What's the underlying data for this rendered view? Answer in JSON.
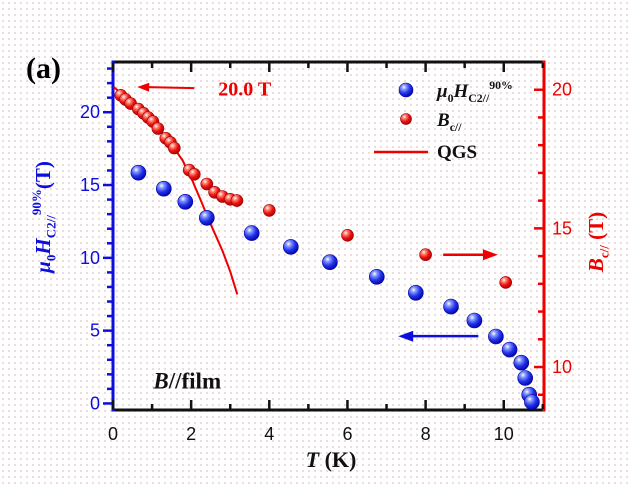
{
  "figure": {
    "panel_label": "(a)",
    "condition_label_plain": "B//film",
    "colors": {
      "blue": "#0d0de0",
      "red": "#ee0000",
      "black": "#111111"
    }
  },
  "chart_data": {
    "type": "scatter",
    "title": "",
    "xlabel": "T (K)",
    "x_axis": {
      "label_parts": [
        {
          "t": "T",
          "s": "it"
        },
        {
          "t": " (K)",
          "s": "n"
        }
      ],
      "range": [
        0,
        11.03
      ],
      "major_ticks": [
        0,
        2,
        4,
        6,
        8,
        10
      ],
      "minor_step": 1,
      "color": "#111111"
    },
    "left_axis": {
      "label_plain": "μ0HC2//90% (T)",
      "label_parts": [
        {
          "t": "μ",
          "s": "it"
        },
        {
          "t": "0",
          "s": "sub"
        },
        {
          "t": "H",
          "s": "it"
        },
        {
          "t": "C2//",
          "s": "sub"
        },
        {
          "t": "90%",
          "s": "sup"
        },
        {
          "t": "(T)",
          "s": "n"
        }
      ],
      "range": [
        -0.45,
        23.45
      ],
      "major_ticks": [
        0,
        5,
        10,
        15,
        20
      ],
      "minor_step": 1,
      "color": "#0d0de0"
    },
    "right_axis": {
      "label_plain": "Bc// (T)",
      "label_parts": [
        {
          "t": "B",
          "s": "it"
        },
        {
          "t": "c//",
          "s": "sub"
        },
        {
          "t": " (T)",
          "s": "n"
        }
      ],
      "range": [
        8.45,
        21.0
      ],
      "major_ticks": [
        10,
        15,
        20
      ],
      "minor_step": 1,
      "color": "#ee0000"
    },
    "legend": {
      "position": "top-right",
      "entries": [
        {
          "marker": "sphere",
          "color": "blue",
          "label_plain": "μ0HC2//90%",
          "label_parts": [
            {
              "t": "μ",
              "s": "it"
            },
            {
              "t": "0",
              "s": "sub"
            },
            {
              "t": "H",
              "s": "it"
            },
            {
              "t": "C2//",
              "s": "sub"
            },
            {
              "t": "90%",
              "s": "sup"
            }
          ]
        },
        {
          "marker": "sphere",
          "color": "red",
          "label_plain": "Bc//",
          "label_parts": [
            {
              "t": "B",
              "s": "it"
            },
            {
              "t": "c//",
              "s": "sub"
            }
          ]
        },
        {
          "marker": "line",
          "color": "red",
          "label_plain": "QGS",
          "label_parts": [
            {
              "t": "QGS",
              "s": "n"
            }
          ]
        }
      ]
    },
    "series": [
      {
        "name": "mu0-Hc2-parallel-90pct",
        "axis": "left",
        "style": "scatter",
        "color": "blue",
        "points": [
          [
            0.65,
            15.85
          ],
          [
            1.3,
            14.75
          ],
          [
            1.85,
            13.85
          ],
          [
            2.4,
            12.75
          ],
          [
            3.55,
            11.7
          ],
          [
            4.55,
            10.75
          ],
          [
            5.55,
            9.7
          ],
          [
            6.75,
            8.7
          ],
          [
            7.75,
            7.6
          ],
          [
            8.65,
            6.65
          ],
          [
            9.25,
            5.7
          ],
          [
            9.8,
            4.6
          ],
          [
            10.15,
            3.7
          ],
          [
            10.45,
            2.8
          ],
          [
            10.55,
            1.75
          ],
          [
            10.65,
            0.6
          ],
          [
            10.72,
            0.1
          ]
        ]
      },
      {
        "name": "Bc-parallel",
        "axis": "right",
        "style": "scatter",
        "color": "red",
        "points": [
          [
            0.2,
            19.8
          ],
          [
            0.32,
            19.65
          ],
          [
            0.45,
            19.5
          ],
          [
            0.65,
            19.3
          ],
          [
            0.78,
            19.15
          ],
          [
            0.9,
            19.0
          ],
          [
            1.02,
            18.85
          ],
          [
            1.15,
            18.6
          ],
          [
            1.35,
            18.25
          ],
          [
            1.47,
            18.1
          ],
          [
            1.57,
            17.9
          ],
          [
            1.95,
            17.1
          ],
          [
            2.08,
            16.95
          ],
          [
            2.4,
            16.6
          ],
          [
            2.6,
            16.3
          ],
          [
            2.8,
            16.15
          ],
          [
            3.0,
            16.05
          ],
          [
            3.17,
            16.0
          ],
          [
            4.0,
            15.65
          ],
          [
            6.0,
            14.75
          ],
          [
            8.0,
            14.05
          ],
          [
            10.05,
            13.05
          ]
        ]
      },
      {
        "name": "QGS-fit",
        "axis": "right",
        "style": "line",
        "color": "red",
        "points": [
          [
            0.02,
            20.1
          ],
          [
            0.4,
            19.63
          ],
          [
            0.78,
            19.18
          ],
          [
            1.0,
            18.9
          ],
          [
            1.2,
            18.57
          ],
          [
            1.5,
            18.02
          ],
          [
            1.78,
            17.45
          ],
          [
            2.0,
            16.82
          ],
          [
            2.25,
            16.0
          ],
          [
            2.5,
            15.15
          ],
          [
            2.8,
            14.2
          ],
          [
            3.0,
            13.45
          ],
          [
            3.18,
            12.62
          ]
        ]
      }
    ],
    "annotations": {
      "field_callout": {
        "text": "20.0 T",
        "text_pos": [
          3.37,
          20.08
        ],
        "arrow_from": [
          2.08,
          20.06
        ],
        "arrow_to": [
          0.62,
          20.1
        ],
        "axis": "right",
        "color": "#ee0000"
      },
      "left_axis_pointer": {
        "arrow_from": [
          9.35,
          4.62
        ],
        "arrow_to": [
          7.3,
          4.62
        ],
        "axis": "left",
        "color": "#0d0de0"
      },
      "right_axis_pointer": {
        "arrow_from": [
          8.45,
          14.05
        ],
        "arrow_to": [
          9.85,
          14.05
        ],
        "axis": "right",
        "color": "#ee0000"
      },
      "condition_label": {
        "text_plain": "B//film",
        "label_parts": [
          {
            "t": "B",
            "s": "it"
          },
          {
            "t": "//film",
            "s": "n"
          }
        ],
        "pos": [
          1.9,
          1.3
        ],
        "color": "#111111"
      }
    }
  }
}
